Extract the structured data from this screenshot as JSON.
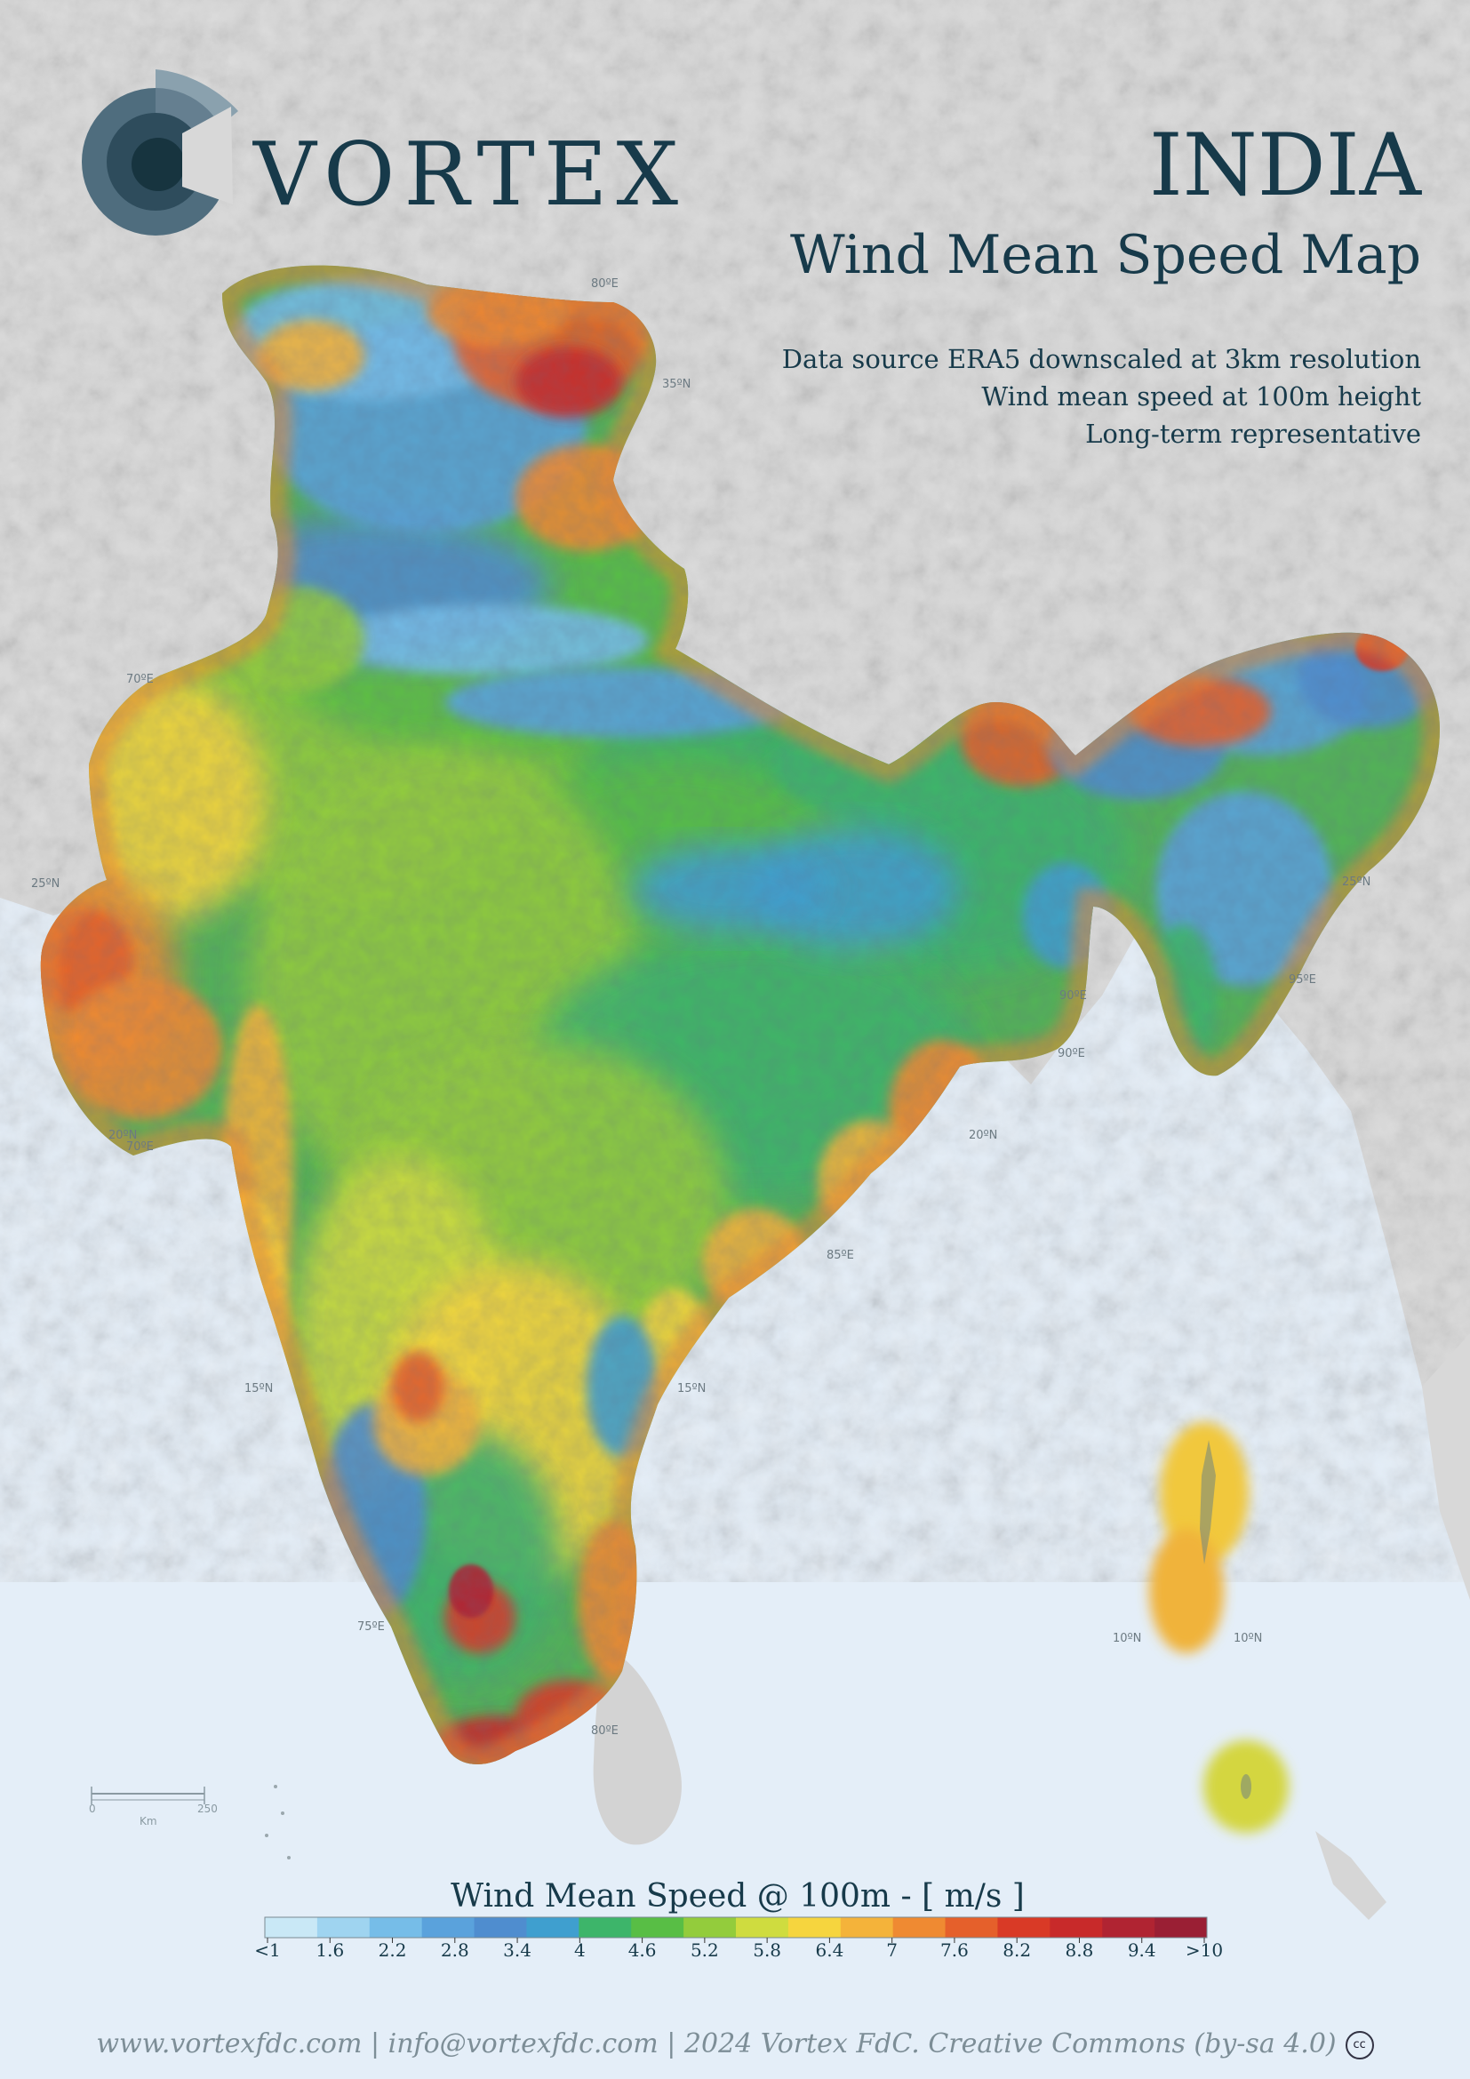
{
  "brand": {
    "name": "VORTEX"
  },
  "title": {
    "country": "INDIA",
    "subtitle": "Wind Mean Speed Map"
  },
  "notes": [
    "Data source ERA5 downscaled at 3km resolution",
    "Wind mean speed  at 100m height",
    "Long-term representative"
  ],
  "grid_labels": [
    "80ºE",
    "35ºN",
    "70ºE",
    "25ºN",
    "90ºE",
    "90ºE",
    "25ºN",
    "20ºN",
    "70ºE",
    "20ºN",
    "85ºE",
    "15ºN",
    "15ºN",
    "75ºE",
    "10ºN",
    "10ºN",
    "80ºE",
    "95ºE"
  ],
  "scalebar": {
    "min": "0",
    "max": "250",
    "unit": "Km"
  },
  "legend": {
    "title": "Wind Mean Speed @ 100m - [ m/s ]",
    "ticks": [
      "<1",
      "1.6",
      "2.2",
      "2.8",
      "3.4",
      "4",
      "4.6",
      "5.2",
      "5.8",
      "6.4",
      "7",
      "7.6",
      "8.2",
      "8.8",
      "9.4",
      ">10"
    ],
    "colors": [
      "#c9e8f6",
      "#9fd4f0",
      "#76bde8",
      "#5aa2dc",
      "#4f8dcf",
      "#3f9fcf",
      "#3db56a",
      "#58be45",
      "#93cc3c",
      "#cfdc3f",
      "#f6d53e",
      "#f4b33a",
      "#ef8a32",
      "#e5602b",
      "#d93a26",
      "#c82a2a",
      "#b02432",
      "#9a1f34"
    ]
  },
  "footer": {
    "text": "www.vortexfdc.com | info@vortexfdc.com | 2024 Vortex FdC.  Creative Commons (by-sa 4.0)",
    "cc": "cc"
  },
  "colors": {
    "ocean": "#e4eef8",
    "land_relief": "#d9d9d9",
    "brand_dark": "#173a4a",
    "brand_mid": "#4f6d7e",
    "brand_light": "#8aa1ae"
  }
}
